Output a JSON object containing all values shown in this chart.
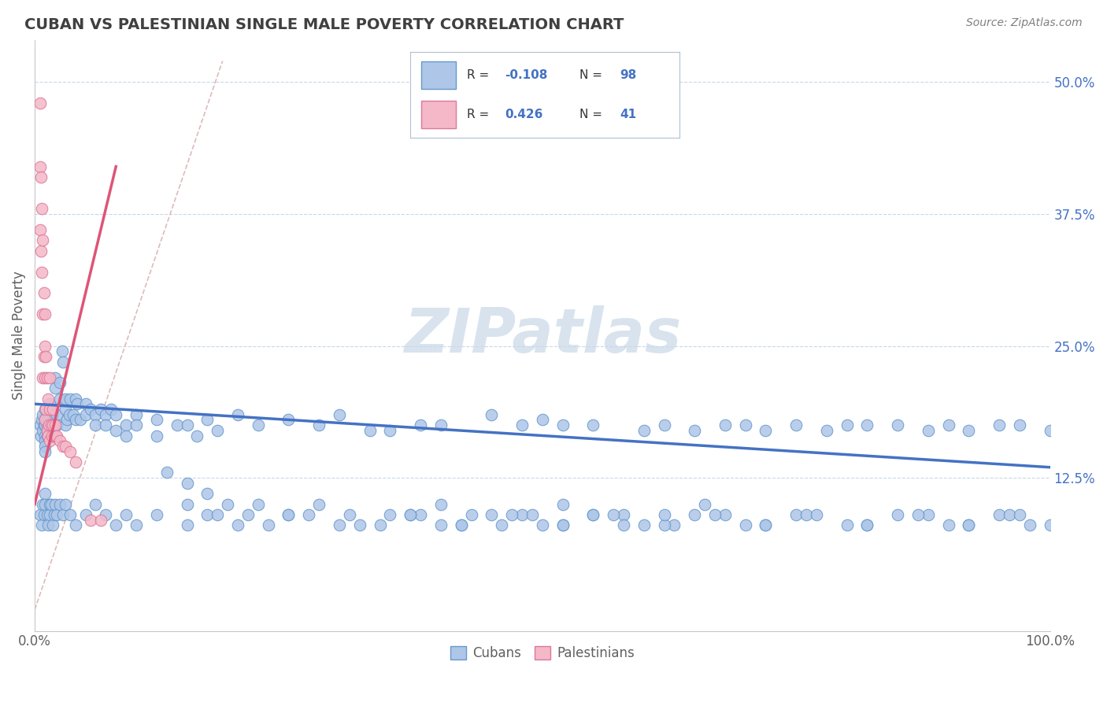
{
  "title": "CUBAN VS PALESTINIAN SINGLE MALE POVERTY CORRELATION CHART",
  "source_text": "Source: ZipAtlas.com",
  "ylabel": "Single Male Poverty",
  "watermark": "ZIPatlas",
  "xlim": [
    0.0,
    1.0
  ],
  "ylim": [
    -0.02,
    0.54
  ],
  "yticks": [
    0.125,
    0.25,
    0.375,
    0.5
  ],
  "ytick_labels": [
    "12.5%",
    "25.0%",
    "37.5%",
    "50.0%"
  ],
  "cuban_color": "#aec6e8",
  "cuban_edge_color": "#6699cc",
  "cuban_line_color": "#4472c4",
  "palestinian_color": "#f4b8c8",
  "palestinian_edge_color": "#dd7799",
  "palestinian_line_color": "#dd5577",
  "diag_color": "#ddbbbb",
  "background_color": "#ffffff",
  "grid_color": "#c8d8e8",
  "title_color": "#404040",
  "axis_color": "#606060",
  "legend_color": "#4472c4",
  "cuban_x": [
    0.005,
    0.006,
    0.007,
    0.008,
    0.008,
    0.009,
    0.01,
    0.01,
    0.01,
    0.01,
    0.01,
    0.01,
    0.01,
    0.012,
    0.012,
    0.013,
    0.014,
    0.015,
    0.015,
    0.015,
    0.016,
    0.017,
    0.018,
    0.018,
    0.019,
    0.02,
    0.02,
    0.02,
    0.022,
    0.022,
    0.025,
    0.025,
    0.027,
    0.028,
    0.03,
    0.03,
    0.03,
    0.032,
    0.034,
    0.035,
    0.038,
    0.04,
    0.04,
    0.042,
    0.045,
    0.05,
    0.05,
    0.055,
    0.06,
    0.06,
    0.065,
    0.07,
    0.07,
    0.075,
    0.08,
    0.08,
    0.09,
    0.09,
    0.1,
    0.1,
    0.12,
    0.12,
    0.14,
    0.15,
    0.16,
    0.17,
    0.18,
    0.2,
    0.22,
    0.25,
    0.28,
    0.3,
    0.33,
    0.35,
    0.38,
    0.4,
    0.45,
    0.5,
    0.55,
    0.6,
    0.62,
    0.65,
    0.68,
    0.7,
    0.72,
    0.75,
    0.78,
    0.8,
    0.82,
    0.85,
    0.88,
    0.9,
    0.92,
    0.95,
    0.97,
    1.0,
    0.48,
    0.52
  ],
  "cuban_y": [
    0.175,
    0.165,
    0.18,
    0.17,
    0.185,
    0.175,
    0.19,
    0.18,
    0.175,
    0.165,
    0.16,
    0.155,
    0.15,
    0.175,
    0.165,
    0.18,
    0.175,
    0.19,
    0.185,
    0.195,
    0.175,
    0.165,
    0.185,
    0.175,
    0.165,
    0.22,
    0.21,
    0.175,
    0.185,
    0.175,
    0.215,
    0.2,
    0.245,
    0.235,
    0.19,
    0.2,
    0.175,
    0.18,
    0.185,
    0.2,
    0.185,
    0.2,
    0.18,
    0.195,
    0.18,
    0.195,
    0.185,
    0.19,
    0.185,
    0.175,
    0.19,
    0.185,
    0.175,
    0.19,
    0.185,
    0.17,
    0.175,
    0.165,
    0.185,
    0.175,
    0.18,
    0.165,
    0.175,
    0.175,
    0.165,
    0.18,
    0.17,
    0.185,
    0.175,
    0.18,
    0.175,
    0.185,
    0.17,
    0.17,
    0.175,
    0.175,
    0.185,
    0.18,
    0.175,
    0.17,
    0.175,
    0.17,
    0.175,
    0.175,
    0.17,
    0.175,
    0.17,
    0.175,
    0.175,
    0.175,
    0.17,
    0.175,
    0.17,
    0.175,
    0.175,
    0.17,
    0.175,
    0.175
  ],
  "cuban_x2": [
    0.005,
    0.007,
    0.008,
    0.009,
    0.01,
    0.01,
    0.012,
    0.013,
    0.015,
    0.015,
    0.016,
    0.018,
    0.019,
    0.02,
    0.022,
    0.025,
    0.028,
    0.03,
    0.035,
    0.04,
    0.05,
    0.06,
    0.07,
    0.08,
    0.09,
    0.1,
    0.12,
    0.15,
    0.17,
    0.2,
    0.25,
    0.3,
    0.35,
    0.4,
    0.45,
    0.5,
    0.55,
    0.6,
    0.65,
    0.7,
    0.75,
    0.8,
    0.85,
    0.9,
    0.95,
    1.0,
    0.38,
    0.42,
    0.48,
    0.52,
    0.58,
    0.63,
    0.68,
    0.72,
    0.76,
    0.82,
    0.88,
    0.92,
    0.96,
    0.98,
    0.15,
    0.18,
    0.22,
    0.27,
    0.32,
    0.37,
    0.42,
    0.47,
    0.52,
    0.57,
    0.62,
    0.67,
    0.72,
    0.77,
    0.82,
    0.87,
    0.92,
    0.97,
    0.13,
    0.15,
    0.17,
    0.19,
    0.21,
    0.23,
    0.25,
    0.28,
    0.31,
    0.34,
    0.37,
    0.4,
    0.43,
    0.46,
    0.49,
    0.52,
    0.55,
    0.58,
    0.62,
    0.66
  ],
  "cuban_y2": [
    0.09,
    0.08,
    0.1,
    0.09,
    0.11,
    0.1,
    0.09,
    0.08,
    0.1,
    0.09,
    0.1,
    0.08,
    0.09,
    0.1,
    0.09,
    0.1,
    0.09,
    0.1,
    0.09,
    0.08,
    0.09,
    0.1,
    0.09,
    0.08,
    0.09,
    0.08,
    0.09,
    0.08,
    0.09,
    0.08,
    0.09,
    0.08,
    0.09,
    0.08,
    0.09,
    0.08,
    0.09,
    0.08,
    0.09,
    0.08,
    0.09,
    0.08,
    0.09,
    0.08,
    0.09,
    0.08,
    0.09,
    0.08,
    0.09,
    0.08,
    0.09,
    0.08,
    0.09,
    0.08,
    0.09,
    0.08,
    0.09,
    0.08,
    0.09,
    0.08,
    0.1,
    0.09,
    0.1,
    0.09,
    0.08,
    0.09,
    0.08,
    0.09,
    0.08,
    0.09,
    0.08,
    0.09,
    0.08,
    0.09,
    0.08,
    0.09,
    0.08,
    0.09,
    0.13,
    0.12,
    0.11,
    0.1,
    0.09,
    0.08,
    0.09,
    0.1,
    0.09,
    0.08,
    0.09,
    0.1,
    0.09,
    0.08,
    0.09,
    0.1,
    0.09,
    0.08,
    0.09,
    0.1
  ],
  "palestinian_x": [
    0.005,
    0.005,
    0.005,
    0.006,
    0.006,
    0.007,
    0.007,
    0.008,
    0.008,
    0.008,
    0.009,
    0.009,
    0.01,
    0.01,
    0.01,
    0.01,
    0.011,
    0.011,
    0.012,
    0.012,
    0.013,
    0.013,
    0.014,
    0.015,
    0.015,
    0.015,
    0.016,
    0.017,
    0.018,
    0.018,
    0.019,
    0.02,
    0.02,
    0.022,
    0.025,
    0.028,
    0.03,
    0.035,
    0.04,
    0.055,
    0.065
  ],
  "palestinian_y": [
    0.48,
    0.42,
    0.36,
    0.41,
    0.34,
    0.38,
    0.32,
    0.35,
    0.28,
    0.22,
    0.3,
    0.24,
    0.28,
    0.22,
    0.18,
    0.25,
    0.24,
    0.19,
    0.22,
    0.17,
    0.2,
    0.165,
    0.175,
    0.19,
    0.16,
    0.22,
    0.175,
    0.165,
    0.19,
    0.175,
    0.165,
    0.175,
    0.165,
    0.165,
    0.16,
    0.155,
    0.155,
    0.15,
    0.14,
    0.085,
    0.085
  ]
}
